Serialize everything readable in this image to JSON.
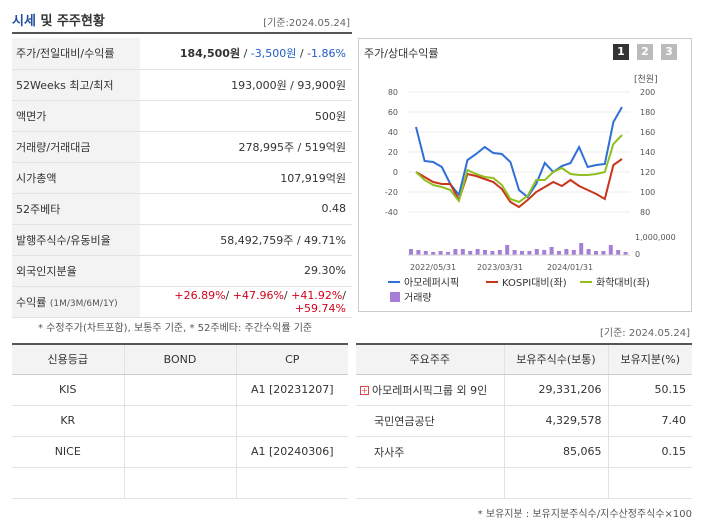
{
  "header": {
    "title_main": "시세",
    "title_sub": "및 주주현황",
    "date": "[기준:2024.05.24]"
  },
  "stats": [
    {
      "label": "주가/전일대비/수익률",
      "price": "184,500원",
      "sep1": " / ",
      "change": "-3,500원",
      "sep2": " / ",
      "rate": "-1.86%"
    },
    {
      "label": "52Weeks 최고/최저",
      "value": "193,000원 / 93,900원"
    },
    {
      "label": "액면가",
      "value": "500원"
    },
    {
      "label": "거래량/거래대금",
      "value": "278,995주 / 519억원"
    },
    {
      "label": "시가총액",
      "value": "107,919억원"
    },
    {
      "label": "52주베타",
      "value": "0.48"
    },
    {
      "label": "발행주식수/유동비율",
      "value": "58,492,759주 / 49.71%"
    },
    {
      "label": "외국인지분율",
      "value": "29.30%"
    },
    {
      "label": "수익률",
      "label_sub": "(1M/3M/6M/1Y)",
      "r1": "+26.89%",
      "r2": "+47.96%",
      "r3": "+41.92%",
      "r4": "+59.74%"
    }
  ],
  "note1": "* 수정주가(차트포함), 보통주 기준, * 52주베타: 주간수익률 기준",
  "chart": {
    "title": "주가/상대수익률",
    "period_buttons": [
      "1",
      "2",
      "3"
    ],
    "right_unit": "[천원]",
    "volume_label": "1,000,000",
    "volume_zero": "0",
    "legend": [
      "아모레퍼시픽",
      "KOSPI대비(좌)",
      "화학대비(좌)",
      "거래량"
    ],
    "colors": {
      "price": "#2f6fd6",
      "kospi": "#c8351a",
      "chem": "#8fbf21",
      "volume": "#a57fd6"
    }
  },
  "chart_data": {
    "type": "line",
    "x_ticks": [
      "2022/05/31",
      "2023/03/31",
      "2024/01/31"
    ],
    "left_axis": {
      "ticks": [
        "80",
        "60",
        "40",
        "20",
        "0",
        "-20",
        "-40"
      ],
      "ylim": [
        -40,
        80
      ]
    },
    "right_axis": {
      "ticks": [
        "200",
        "180",
        "160",
        "140",
        "120",
        "100",
        "80"
      ],
      "ylim": [
        80,
        200
      ]
    },
    "series": [
      {
        "name": "아모레퍼시픽",
        "axis": "right",
        "values": [
          165,
          131,
          130,
          125,
          108,
          97,
          132,
          138,
          145,
          139,
          138,
          130,
          102,
          95,
          108,
          129,
          120,
          126,
          129,
          145,
          125,
          127,
          128,
          170,
          185
        ]
      },
      {
        "name": "KOSPI대비(좌)",
        "axis": "left",
        "values": [
          0,
          -5,
          -10,
          -12,
          -12,
          -28,
          -2,
          -4,
          -7,
          -10,
          -17,
          -30,
          -35,
          -28,
          -20,
          -15,
          -10,
          -14,
          -8,
          -14,
          -18,
          -22,
          -27,
          7,
          13
        ]
      },
      {
        "name": "화학대비(좌)",
        "axis": "left",
        "values": [
          0,
          -8,
          -13,
          -15,
          -18,
          -29,
          2,
          -2,
          -5,
          -6,
          -13,
          -27,
          -30,
          -24,
          -8,
          -8,
          0,
          4,
          -2,
          -3,
          -3,
          -2,
          0,
          28,
          37
        ]
      }
    ],
    "volume": [
      0.3,
      0.25,
      0.2,
      0.15,
      0.2,
      0.15,
      0.3,
      0.3,
      0.2,
      0.3,
      0.25,
      0.2,
      0.25,
      0.5,
      0.25,
      0.2,
      0.2,
      0.3,
      0.25,
      0.4,
      0.2,
      0.3,
      0.25,
      0.6,
      0.3,
      0.2,
      0.2,
      0.5,
      0.25,
      0.15
    ]
  },
  "date2": "[기준: 2024.05.24]",
  "credit": {
    "headers": [
      "신용등급",
      "BOND",
      "CP"
    ],
    "rows": [
      {
        "agency": "KIS",
        "bond": "",
        "cp": "A1 [20231207]"
      },
      {
        "agency": "KR",
        "bond": "",
        "cp": ""
      },
      {
        "agency": "NICE",
        "bond": "",
        "cp": "A1 [20240306]"
      },
      {
        "agency": "",
        "bond": "",
        "cp": ""
      }
    ]
  },
  "holders": {
    "headers": [
      "주요주주",
      "보유주식수(보통)",
      "보유지분(%)"
    ],
    "rows": [
      {
        "name": "아모레퍼시픽그룹 외 9인",
        "shares": "29,331,206",
        "pct": "50.15"
      },
      {
        "name": "국민연금공단",
        "shares": "4,329,578",
        "pct": "7.40"
      },
      {
        "name": "자사주",
        "shares": "85,065",
        "pct": "0.15"
      },
      {
        "name": "",
        "shares": "",
        "pct": ""
      }
    ]
  },
  "note2": "* 보유지분 : 보유지분주식수/지수산정주식수×100"
}
